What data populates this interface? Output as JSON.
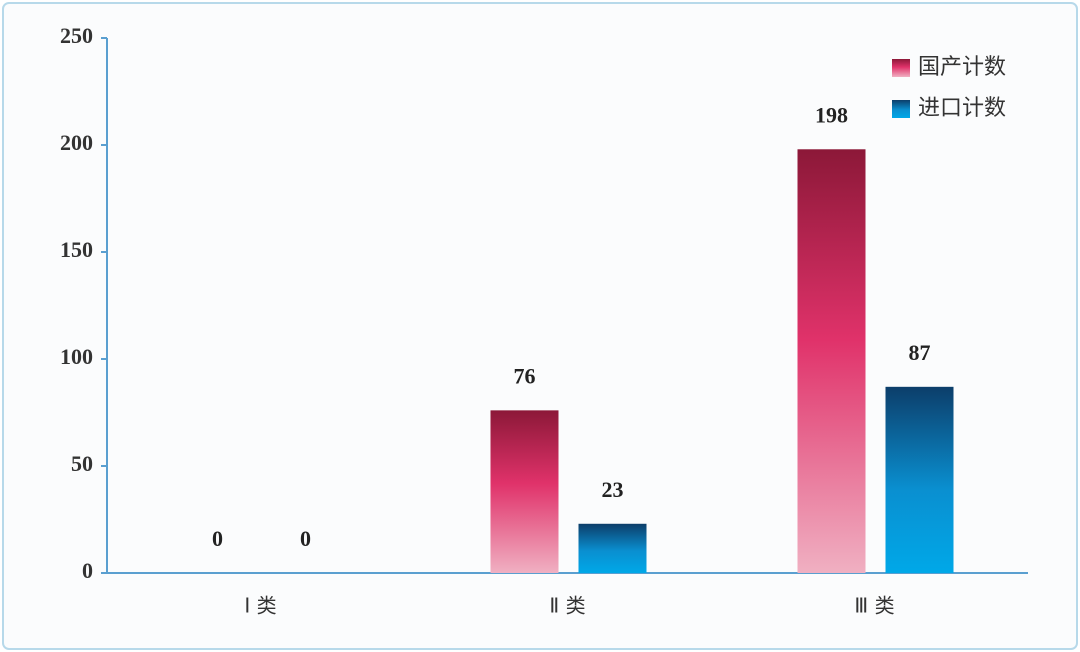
{
  "chart_data": {
    "type": "bar",
    "categories": [
      "Ⅰ 类",
      "Ⅱ 类",
      "Ⅲ 类"
    ],
    "series": [
      {
        "name": "国产计数",
        "color": "#e0326a",
        "values": [
          0,
          76,
          198
        ]
      },
      {
        "name": "进口计数",
        "color": "#0a8fd0",
        "values": [
          0,
          23,
          87
        ]
      }
    ],
    "ylim": [
      0,
      250
    ],
    "yticks": [
      0,
      50,
      100,
      150,
      200,
      250
    ],
    "legend": "top-right"
  }
}
